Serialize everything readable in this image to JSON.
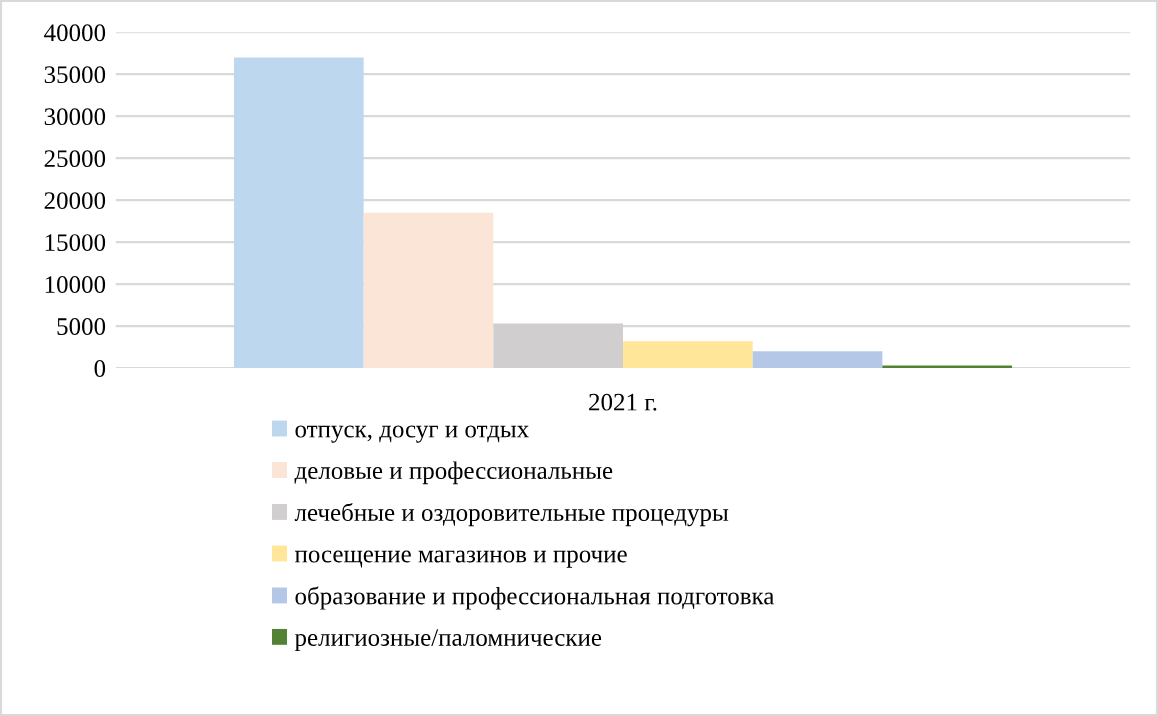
{
  "chart_data": {
    "type": "bar",
    "categories": [
      "2021 г."
    ],
    "series": [
      {
        "name": "отпуск, досуг и отдых",
        "color": "#bdd7ee",
        "values": [
          37000
        ]
      },
      {
        "name": "деловые и профессиональные",
        "color": "#fbe5d6",
        "values": [
          18500
        ]
      },
      {
        "name": "лечебные и оздоровительные процедуры",
        "color": "#d0cece",
        "values": [
          5300
        ]
      },
      {
        "name": "посещение магазинов и прочие",
        "color": "#ffe699",
        "values": [
          3200
        ]
      },
      {
        "name": "образование и профессиональная подготовка",
        "color": "#b4c7e7",
        "values": [
          2000
        ]
      },
      {
        "name": "религиозные/паломнические",
        "color": "#548235",
        "values": [
          300
        ]
      }
    ],
    "ylim": [
      0,
      40000
    ],
    "yticks": [
      0,
      5000,
      10000,
      15000,
      20000,
      25000,
      30000,
      35000,
      40000
    ],
    "grid": "y",
    "legend": "bottom"
  }
}
